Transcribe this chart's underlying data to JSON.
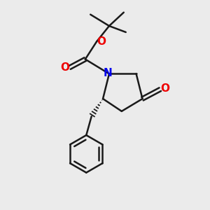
{
  "bg_color": "#ebebeb",
  "bond_color": "#1a1a1a",
  "N_color": "#0000ee",
  "O_color": "#ee0000",
  "bond_width": 1.8,
  "fig_size": [
    3.0,
    3.0
  ],
  "dpi": 100,
  "xlim": [
    0,
    10
  ],
  "ylim": [
    0,
    10
  ]
}
